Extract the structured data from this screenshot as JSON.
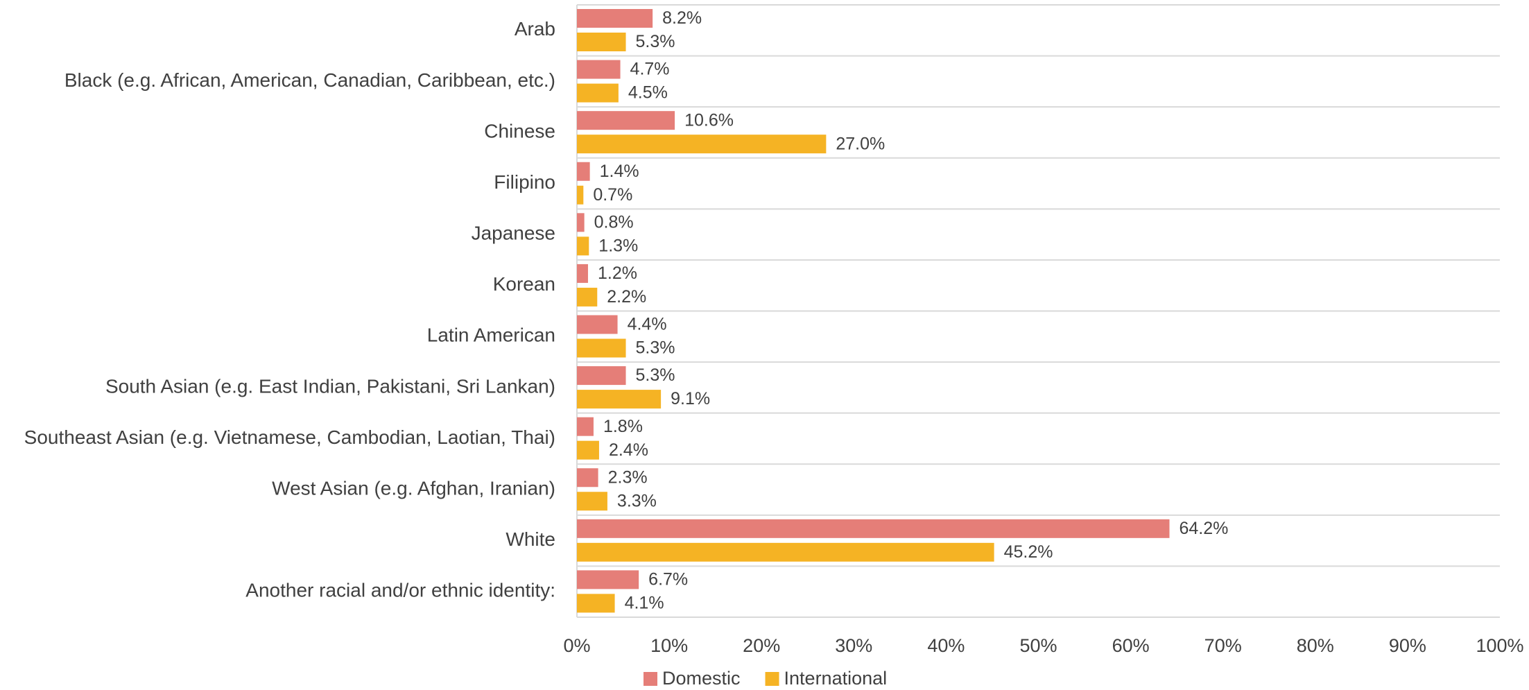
{
  "chart_data": {
    "type": "hbar",
    "categories": [
      "Arab",
      "Black (e.g. African, American, Canadian, Caribbean, etc.)",
      "Chinese",
      "Filipino",
      "Japanese",
      "Korean",
      "Latin American",
      "South Asian (e.g. East Indian, Pakistani, Sri Lankan)",
      "Southeast Asian (e.g. Vietnamese, Cambodian, Laotian, Thai)",
      "West Asian (e.g. Afghan, Iranian)",
      "White",
      "Another racial and/or ethnic identity:"
    ],
    "series": [
      {
        "name": "Domestic",
        "color": "#e57e78",
        "values": [
          8.2,
          4.7,
          10.6,
          1.4,
          0.8,
          1.2,
          4.4,
          5.3,
          1.8,
          2.3,
          64.2,
          6.7
        ],
        "value_labels": [
          "8.2%",
          "4.7%",
          "10.6%",
          "1.4%",
          "0.8%",
          "1.2%",
          "4.4%",
          "5.3%",
          "1.8%",
          "2.3%",
          "64.2%",
          "6.7%"
        ]
      },
      {
        "name": "International",
        "color": "#f5b324",
        "values": [
          5.3,
          4.5,
          27.0,
          0.7,
          1.3,
          2.2,
          5.3,
          9.1,
          2.4,
          3.3,
          45.2,
          4.1
        ],
        "value_labels": [
          "5.3%",
          "4.5%",
          "27.0%",
          "0.7%",
          "1.3%",
          "2.2%",
          "5.3%",
          "9.1%",
          "2.4%",
          "3.3%",
          "45.2%",
          "4.1%"
        ]
      }
    ],
    "xlim": [
      0,
      100
    ],
    "xticks": [
      {
        "value": 0,
        "label": "0%"
      },
      {
        "value": 10,
        "label": "10%"
      },
      {
        "value": 20,
        "label": "20%"
      },
      {
        "value": 30,
        "label": "30%"
      },
      {
        "value": 40,
        "label": "40%"
      },
      {
        "value": 50,
        "label": "50%"
      },
      {
        "value": 60,
        "label": "60%"
      },
      {
        "value": 70,
        "label": "70%"
      },
      {
        "value": 80,
        "label": "80%"
      },
      {
        "value": 90,
        "label": "90%"
      },
      {
        "value": 100,
        "label": "100%"
      }
    ],
    "legend": "bottom"
  }
}
